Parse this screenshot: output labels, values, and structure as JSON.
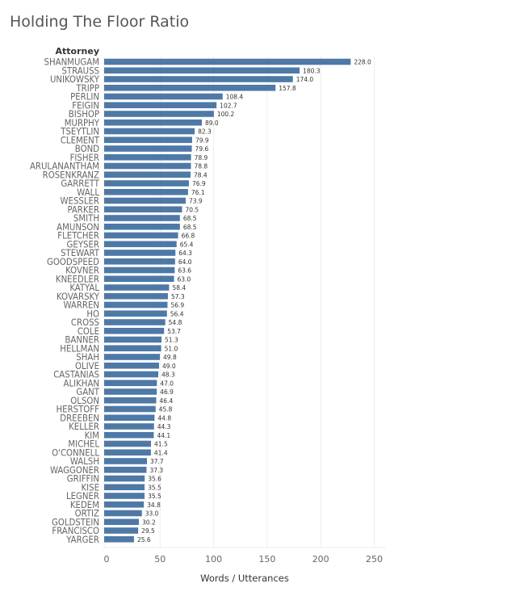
{
  "title": "Holding The Floor Ratio",
  "chart_data": {
    "type": "bar",
    "orientation": "horizontal",
    "title": "Holding The Floor Ratio",
    "category_header": "Attorney",
    "xlabel": "Words / Utterances",
    "xlim": [
      0,
      260
    ],
    "xticks": [
      "0",
      "50",
      "100",
      "150",
      "200",
      "250"
    ],
    "grid": true,
    "bar_color": "#4e79a7",
    "categories": [
      "SHANMUGAM",
      "STRAUSS",
      "UNIKOWSKY",
      "TRIPP",
      "PERLIN",
      "FEIGIN",
      "BISHOP",
      "MURPHY",
      "TSEYTLIN",
      "CLEMENT",
      "BOND",
      "FISHER",
      "ARULANANTHAM",
      "ROSENKRANZ",
      "GARRETT",
      "WALL",
      "WESSLER",
      "PARKER",
      "SMITH",
      "AMUNSON",
      "FLETCHER",
      "GEYSER",
      "STEWART",
      "GOODSPEED",
      "KOVNER",
      "KNEEDLER",
      "KATYAL",
      "KOVARSKY",
      "WARREN",
      "HO",
      "CROSS",
      "COLE",
      "BANNER",
      "HELLMAN",
      "SHAH",
      "OLIVE",
      "CASTANIAS",
      "ALIKHAN",
      "GANT",
      "OLSON",
      "HERSTOFF",
      "DREEBEN",
      "KELLER",
      "KIM",
      "MICHEL",
      "O'CONNELL",
      "WALSH",
      "WAGGONER",
      "GRIFFIN",
      "KISE",
      "LEGNER",
      "KEDEM",
      "ORTIZ",
      "GOLDSTEIN",
      "FRANCISCO",
      "YARGER"
    ],
    "values": [
      228.0,
      180.3,
      174.0,
      157.8,
      108.4,
      102.7,
      100.2,
      89.0,
      82.3,
      79.9,
      79.6,
      78.9,
      78.8,
      78.4,
      76.9,
      76.1,
      73.9,
      70.5,
      68.5,
      68.5,
      66.8,
      65.4,
      64.3,
      64.0,
      63.6,
      63.0,
      58.4,
      57.3,
      56.9,
      56.4,
      54.8,
      53.7,
      51.3,
      51.0,
      49.8,
      49.0,
      48.3,
      47.0,
      46.9,
      46.4,
      45.8,
      44.8,
      44.3,
      44.1,
      41.5,
      41.4,
      37.7,
      37.3,
      35.6,
      35.5,
      35.5,
      34.8,
      33.0,
      30.2,
      29.5,
      25.6
    ],
    "value_labels": [
      "228.0",
      "180.3",
      "174.0",
      "157.8",
      "108.4",
      "102.7",
      "100.2",
      "89.0",
      "82.3",
      "79.9",
      "79.6",
      "78.9",
      "78.8",
      "78.4",
      "76.9",
      "76.1",
      "73.9",
      "70.5",
      "68.5",
      "68.5",
      "66.8",
      "65.4",
      "64.3",
      "64.0",
      "63.6",
      "63.0",
      "58.4",
      "57.3",
      "56.9",
      "56.4",
      "54.8",
      "53.7",
      "51.3",
      "51.0",
      "49.8",
      "49.0",
      "48.3",
      "47.0",
      "46.9",
      "46.4",
      "45.8",
      "44.8",
      "44.3",
      "44.1",
      "41.5",
      "41.4",
      "37.7",
      "37.3",
      "35.6",
      "35.5",
      "35.5",
      "34.8",
      "33.0",
      "30.2",
      "29.5",
      "25.6"
    ]
  }
}
